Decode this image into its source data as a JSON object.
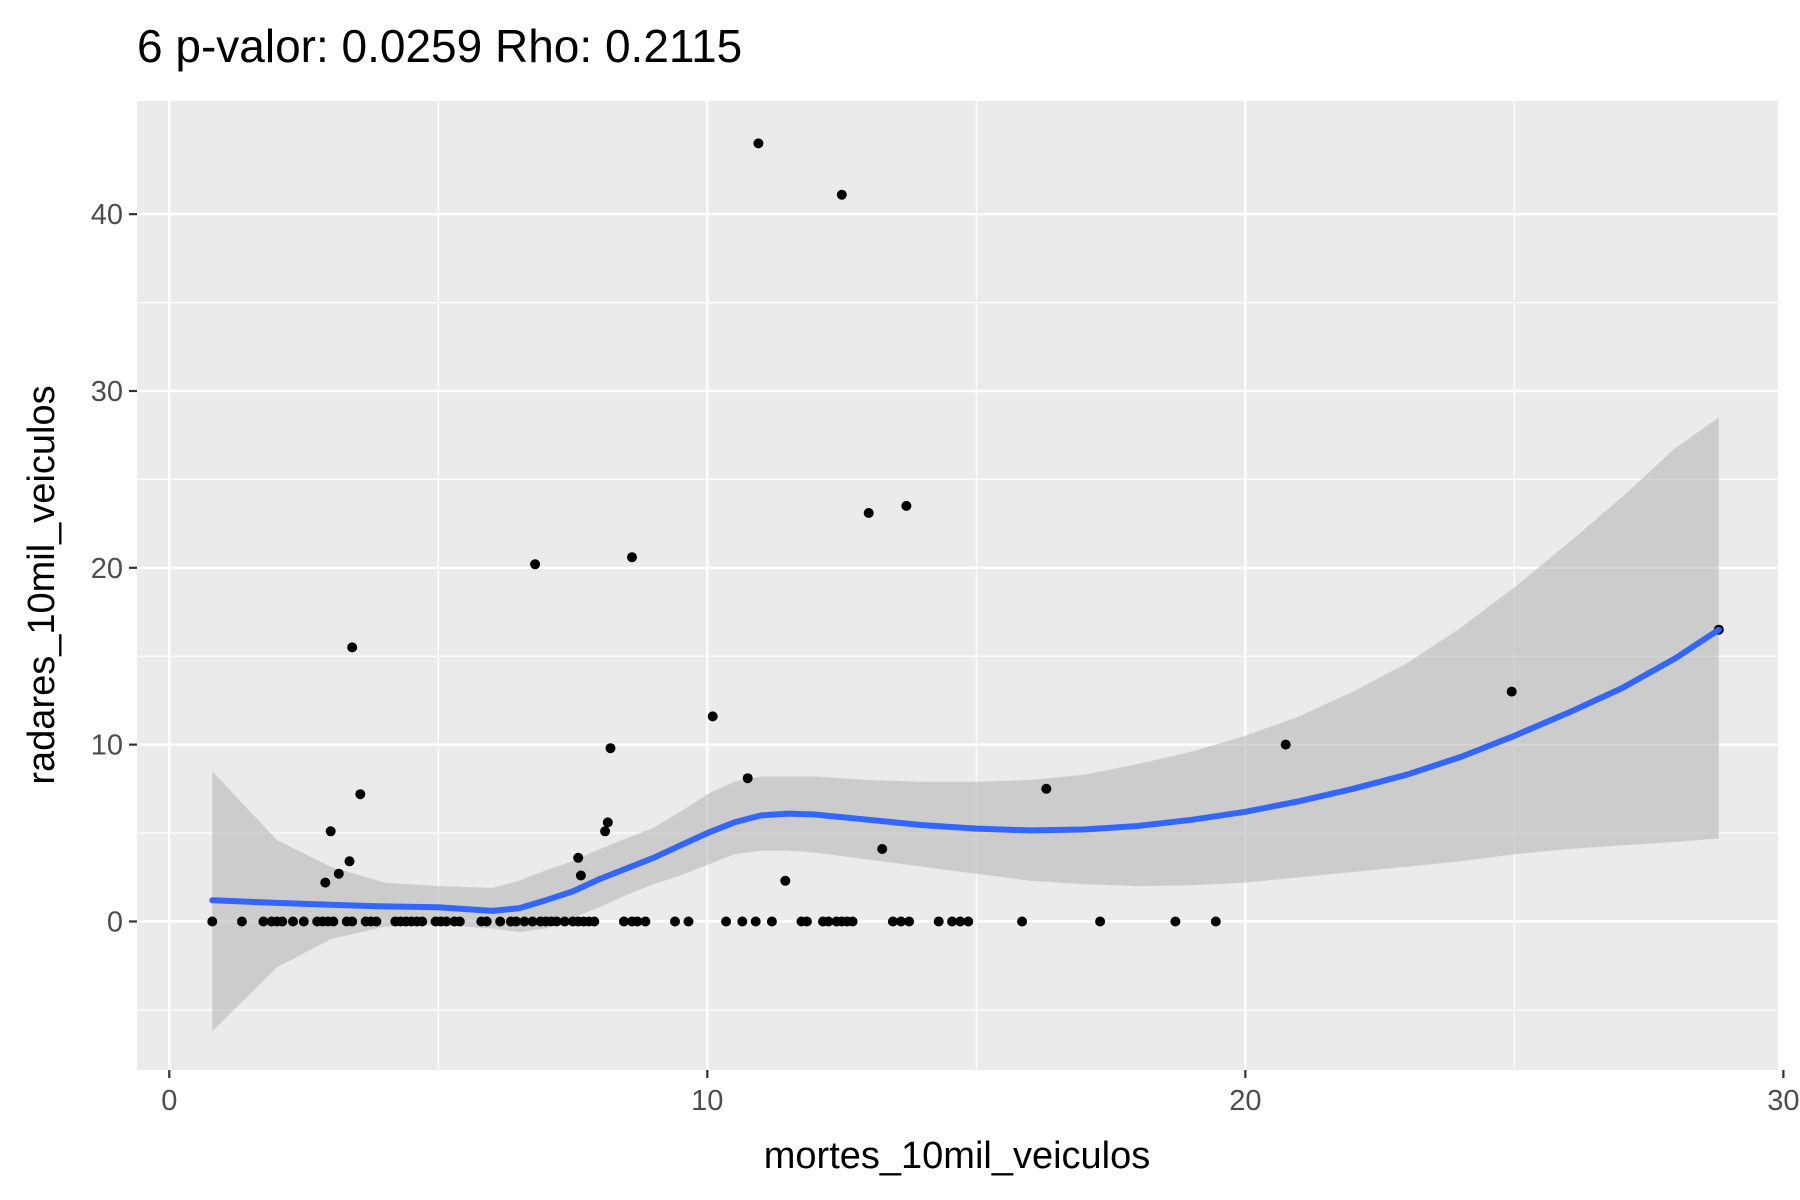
{
  "chart_data": {
    "type": "scatter",
    "title": "6 p-valor: 0.0259 Rho: 0.2115",
    "xlabel": "mortes_10mil_veiculos",
    "ylabel": "radares_10mil_veiculos",
    "xlim": [
      -0.6,
      29.9
    ],
    "ylim": [
      -8.4,
      46.4
    ],
    "x_ticks": [
      0,
      10,
      20,
      30
    ],
    "y_ticks": [
      0,
      10,
      20,
      30,
      40
    ],
    "x_tick_labels": [
      "0",
      "10",
      "20",
      "30"
    ],
    "y_tick_labels": [
      "0",
      "10",
      "20",
      "30",
      "40"
    ],
    "grid": true,
    "colors": {
      "panel": "#ebebeb",
      "grid": "#ffffff",
      "points": "#000000",
      "smooth_line": "#3366ff",
      "confidence_band": "#b3b3b3"
    },
    "points": [
      {
        "x": 0.8,
        "y": 0
      },
      {
        "x": 1.35,
        "y": 0
      },
      {
        "x": 1.75,
        "y": 0
      },
      {
        "x": 1.9,
        "y": 0
      },
      {
        "x": 2.0,
        "y": 0
      },
      {
        "x": 2.1,
        "y": 0
      },
      {
        "x": 2.3,
        "y": 0
      },
      {
        "x": 2.5,
        "y": 0
      },
      {
        "x": 2.75,
        "y": 0
      },
      {
        "x": 2.85,
        "y": 0
      },
      {
        "x": 2.95,
        "y": 0
      },
      {
        "x": 3.05,
        "y": 0
      },
      {
        "x": 3.3,
        "y": 0
      },
      {
        "x": 3.4,
        "y": 15.5
      },
      {
        "x": 3.4,
        "y": 0
      },
      {
        "x": 3.55,
        "y": 7.2
      },
      {
        "x": 3.65,
        "y": 0
      },
      {
        "x": 3.75,
        "y": 0
      },
      {
        "x": 3.85,
        "y": 0
      },
      {
        "x": 4.2,
        "y": 0
      },
      {
        "x": 4.3,
        "y": 0
      },
      {
        "x": 4.4,
        "y": 0
      },
      {
        "x": 4.5,
        "y": 0
      },
      {
        "x": 4.6,
        "y": 0
      },
      {
        "x": 4.7,
        "y": 0
      },
      {
        "x": 4.95,
        "y": 0
      },
      {
        "x": 5.05,
        "y": 0
      },
      {
        "x": 5.15,
        "y": 0
      },
      {
        "x": 5.3,
        "y": 0
      },
      {
        "x": 5.4,
        "y": 0
      },
      {
        "x": 5.8,
        "y": 0
      },
      {
        "x": 5.9,
        "y": 0
      },
      {
        "x": 6.15,
        "y": 0
      },
      {
        "x": 6.35,
        "y": 0
      },
      {
        "x": 6.45,
        "y": 0
      },
      {
        "x": 6.6,
        "y": 0
      },
      {
        "x": 6.75,
        "y": 0
      },
      {
        "x": 6.8,
        "y": 20.2
      },
      {
        "x": 6.9,
        "y": 0
      },
      {
        "x": 7.0,
        "y": 0
      },
      {
        "x": 7.1,
        "y": 0
      },
      {
        "x": 7.2,
        "y": 0
      },
      {
        "x": 7.35,
        "y": 0
      },
      {
        "x": 7.5,
        "y": 0
      },
      {
        "x": 7.6,
        "y": 0
      },
      {
        "x": 7.7,
        "y": 0
      },
      {
        "x": 7.8,
        "y": 0
      },
      {
        "x": 7.9,
        "y": 0
      },
      {
        "x": 8.45,
        "y": 0
      },
      {
        "x": 8.6,
        "y": 0
      },
      {
        "x": 8.7,
        "y": 0
      },
      {
        "x": 8.85,
        "y": 0
      },
      {
        "x": 9.4,
        "y": 0
      },
      {
        "x": 9.65,
        "y": 0
      },
      {
        "x": 10.35,
        "y": 0
      },
      {
        "x": 10.65,
        "y": 0
      },
      {
        "x": 10.9,
        "y": 0
      },
      {
        "x": 11.2,
        "y": 0
      },
      {
        "x": 11.75,
        "y": 0
      },
      {
        "x": 11.85,
        "y": 0
      },
      {
        "x": 12.15,
        "y": 0
      },
      {
        "x": 12.25,
        "y": 0
      },
      {
        "x": 12.4,
        "y": 0
      },
      {
        "x": 12.5,
        "y": 0
      },
      {
        "x": 12.6,
        "y": 0
      },
      {
        "x": 12.7,
        "y": 0
      },
      {
        "x": 13.45,
        "y": 0
      },
      {
        "x": 13.6,
        "y": 0
      },
      {
        "x": 13.75,
        "y": 0
      },
      {
        "x": 14.3,
        "y": 0
      },
      {
        "x": 14.55,
        "y": 0
      },
      {
        "x": 14.7,
        "y": 0
      },
      {
        "x": 14.85,
        "y": 0
      },
      {
        "x": 15.85,
        "y": 0
      },
      {
        "x": 17.3,
        "y": 0
      },
      {
        "x": 18.7,
        "y": 0
      },
      {
        "x": 19.45,
        "y": 0
      },
      {
        "x": 2.9,
        "y": 2.2
      },
      {
        "x": 3.0,
        "y": 5.1
      },
      {
        "x": 3.15,
        "y": 2.7
      },
      {
        "x": 3.35,
        "y": 3.4
      },
      {
        "x": 7.6,
        "y": 3.6
      },
      {
        "x": 7.65,
        "y": 2.6
      },
      {
        "x": 8.1,
        "y": 5.1
      },
      {
        "x": 8.15,
        "y": 5.6
      },
      {
        "x": 8.2,
        "y": 9.8
      },
      {
        "x": 8.6,
        "y": 20.6
      },
      {
        "x": 10.1,
        "y": 11.6
      },
      {
        "x": 10.75,
        "y": 8.1
      },
      {
        "x": 10.95,
        "y": 44.0
      },
      {
        "x": 11.45,
        "y": 2.3
      },
      {
        "x": 12.5,
        "y": 41.1
      },
      {
        "x": 13.0,
        "y": 23.1
      },
      {
        "x": 13.25,
        "y": 4.1
      },
      {
        "x": 13.7,
        "y": 23.5
      },
      {
        "x": 16.3,
        "y": 7.5
      },
      {
        "x": 20.75,
        "y": 10.0
      },
      {
        "x": 24.95,
        "y": 13.0
      },
      {
        "x": 28.8,
        "y": 16.5
      }
    ],
    "smooth": {
      "x": [
        0.8,
        2.0,
        3.0,
        4.0,
        5.0,
        6.0,
        6.5,
        7.0,
        7.5,
        8.0,
        8.5,
        9.0,
        9.5,
        10.0,
        10.5,
        11.0,
        11.5,
        12.0,
        13.0,
        14.0,
        15.0,
        16.0,
        17.0,
        18.0,
        19.0,
        20.0,
        21.0,
        22.0,
        23.0,
        24.0,
        25.0,
        26.0,
        27.0,
        28.0,
        28.8
      ],
      "y": [
        1.2,
        1.05,
        0.95,
        0.85,
        0.8,
        0.6,
        0.75,
        1.2,
        1.7,
        2.4,
        3.0,
        3.6,
        4.3,
        5.0,
        5.6,
        6.0,
        6.1,
        6.05,
        5.75,
        5.45,
        5.25,
        5.15,
        5.2,
        5.4,
        5.75,
        6.2,
        6.8,
        7.5,
        8.3,
        9.3,
        10.5,
        11.8,
        13.2,
        14.9,
        16.5
      ],
      "lower": [
        -6.2,
        -2.6,
        -1.0,
        -0.3,
        -0.2,
        -0.4,
        -0.6,
        -0.4,
        0.2,
        0.8,
        1.5,
        2.1,
        2.6,
        3.2,
        3.8,
        4.0,
        4.0,
        3.9,
        3.5,
        3.1,
        2.7,
        2.3,
        2.1,
        2.0,
        2.05,
        2.2,
        2.5,
        2.8,
        3.1,
        3.4,
        3.8,
        4.1,
        4.3,
        4.5,
        4.7
      ],
      "upper": [
        8.5,
        4.6,
        3.1,
        2.2,
        2.0,
        1.9,
        2.3,
        2.9,
        3.4,
        4.1,
        4.7,
        5.3,
        6.2,
        7.2,
        7.9,
        8.2,
        8.2,
        8.2,
        8.0,
        7.9,
        7.9,
        8.0,
        8.3,
        8.9,
        9.6,
        10.5,
        11.6,
        13.0,
        14.6,
        16.6,
        18.9,
        21.4,
        24.0,
        26.8,
        28.5
      ]
    }
  }
}
